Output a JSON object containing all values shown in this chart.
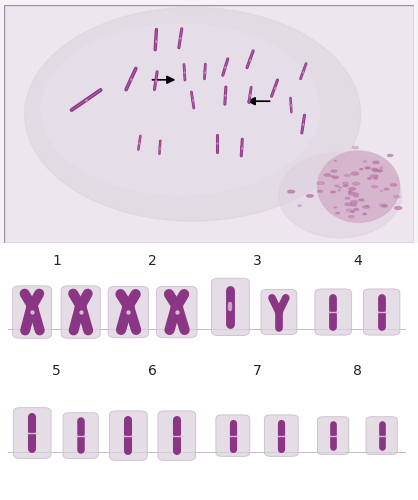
{
  "figure_bg": "#f5f3f5",
  "top_bg": "#e8e0ea",
  "cell_color": "#d8ccd8",
  "cell_inner": "#e4dce4",
  "chrom_dark": "#8b3585",
  "chrom_mid": "#b060a8",
  "chrom_light": "#d090c0",
  "chrom_outer": "#ddc8dd",
  "blob_bg": "#e0d0e0",
  "blob_edge": "#c0a8c0",
  "arrow_color": "#111111",
  "label_color": "#333333",
  "line_color": "#c0c0c0",
  "row1_labels": [
    "1",
    "2",
    "3",
    "4"
  ],
  "row2_labels": [
    "5",
    "6",
    "7",
    "8"
  ],
  "nucleolus_color": "#d4b0c8",
  "nucleolus_dot": "#b870a8"
}
